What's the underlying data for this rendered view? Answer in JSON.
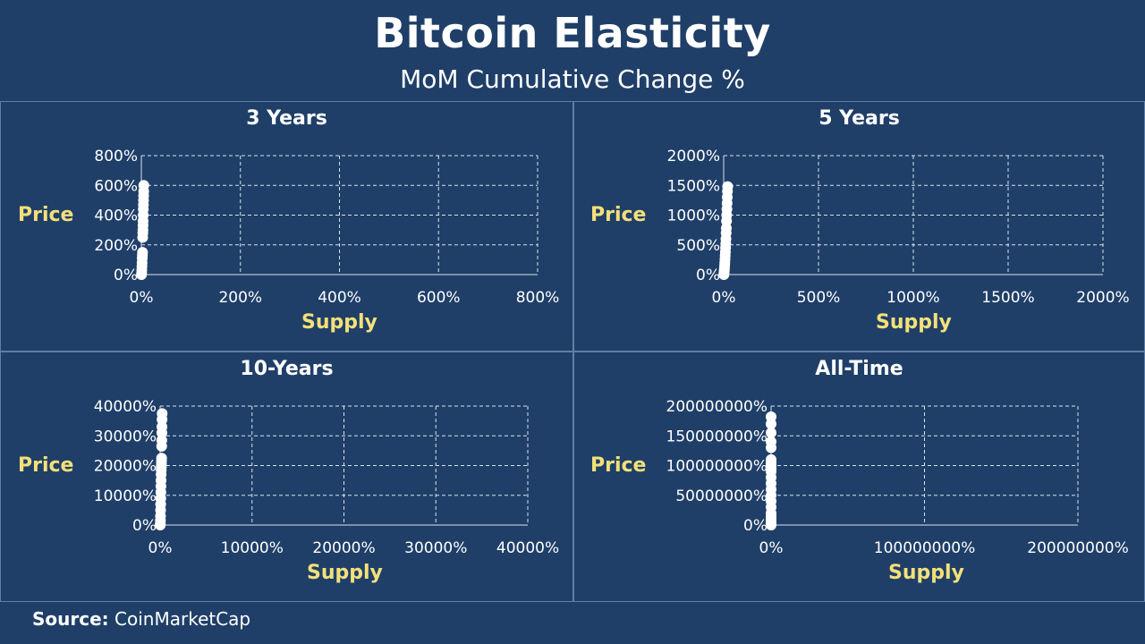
{
  "title": "Bitcoin Elasticity",
  "subtitle": "MoM Cumulative Change %",
  "source": {
    "label": "Source:",
    "value": "CoinMarketCap"
  },
  "chart_data": [
    {
      "type": "scatter",
      "title": "3 Years",
      "xlabel": "Supply",
      "ylabel": "Price",
      "xlim": [
        0,
        800
      ],
      "ylim": [
        0,
        800
      ],
      "xticks": [
        "0%",
        "200%",
        "400%",
        "600%",
        "800%"
      ],
      "yticks": [
        "0%",
        "200%",
        "400%",
        "600%",
        "800%"
      ],
      "grid": true,
      "points": [
        [
          0.3,
          0
        ],
        [
          0.6,
          10
        ],
        [
          0.9,
          30
        ],
        [
          1.2,
          55
        ],
        [
          1.5,
          80
        ],
        [
          1.8,
          110
        ],
        [
          2.1,
          130
        ],
        [
          2.4,
          150
        ],
        [
          2.7,
          250
        ],
        [
          3,
          280
        ],
        [
          3.2,
          300
        ],
        [
          3.4,
          330
        ],
        [
          3.6,
          360
        ],
        [
          3.8,
          400
        ],
        [
          4,
          440
        ],
        [
          4.2,
          470
        ],
        [
          4.4,
          500
        ],
        [
          4.6,
          530
        ],
        [
          4.8,
          560
        ],
        [
          5,
          600
        ]
      ]
    },
    {
      "type": "scatter",
      "title": "5 Years",
      "xlabel": "Supply",
      "ylabel": "Price",
      "xlim": [
        0,
        2000
      ],
      "ylim": [
        0,
        2000
      ],
      "xticks": [
        "0%",
        "500%",
        "1000%",
        "1500%",
        "2000%"
      ],
      "yticks": [
        "0%",
        "500%",
        "1000%",
        "1500%",
        "2000%"
      ],
      "grid": true,
      "points": [
        [
          1,
          0
        ],
        [
          2,
          30
        ],
        [
          3,
          60
        ],
        [
          4,
          100
        ],
        [
          5,
          150
        ],
        [
          6,
          200
        ],
        [
          7,
          260
        ],
        [
          8,
          320
        ],
        [
          9,
          380
        ],
        [
          10,
          450
        ],
        [
          11,
          520
        ],
        [
          12,
          600
        ],
        [
          13,
          700
        ],
        [
          14,
          780
        ],
        [
          15,
          900
        ],
        [
          16,
          1000
        ],
        [
          17,
          1100
        ],
        [
          18,
          1200
        ],
        [
          19,
          1300
        ],
        [
          20,
          1400
        ],
        [
          21,
          1480
        ]
      ]
    },
    {
      "type": "scatter",
      "title": "10-Years",
      "xlabel": "Supply",
      "ylabel": "Price",
      "xlim": [
        0,
        40000
      ],
      "ylim": [
        0,
        40000
      ],
      "xticks": [
        "0%",
        "10000%",
        "20000%",
        "30000%",
        "40000%"
      ],
      "yticks": [
        "0%",
        "10000%",
        "20000%",
        "30000%",
        "40000%"
      ],
      "grid": true,
      "points": [
        [
          10,
          0
        ],
        [
          20,
          500
        ],
        [
          30,
          1500
        ],
        [
          40,
          3000
        ],
        [
          50,
          5000
        ],
        [
          60,
          7000
        ],
        [
          70,
          9000
        ],
        [
          80,
          11000
        ],
        [
          90,
          13000
        ],
        [
          100,
          15000
        ],
        [
          110,
          17000
        ],
        [
          120,
          18500
        ],
        [
          130,
          19500
        ],
        [
          140,
          20500
        ],
        [
          150,
          21500
        ],
        [
          160,
          22500
        ],
        [
          170,
          26500
        ],
        [
          180,
          28500
        ],
        [
          190,
          31000
        ],
        [
          200,
          33000
        ],
        [
          210,
          35500
        ],
        [
          220,
          37500
        ]
      ]
    },
    {
      "type": "scatter",
      "title": "All-Time",
      "xlabel": "Supply",
      "ylabel": "Price",
      "xlim": [
        0,
        200000000
      ],
      "ylim": [
        0,
        200000000
      ],
      "xticks": [
        "0%",
        "100000000%",
        "200000000%"
      ],
      "yticks": [
        "0%",
        "50000000%",
        "100000000%",
        "150000000%",
        "200000000%"
      ],
      "grid": true,
      "points": [
        [
          100,
          0
        ],
        [
          200,
          2000000
        ],
        [
          300,
          5000000
        ],
        [
          400,
          10000000
        ],
        [
          500,
          15000000
        ],
        [
          600,
          20000000
        ],
        [
          700,
          30000000
        ],
        [
          800,
          40000000
        ],
        [
          900,
          50000000
        ],
        [
          1000,
          60000000
        ],
        [
          1100,
          70000000
        ],
        [
          1200,
          80000000
        ],
        [
          1300,
          90000000
        ],
        [
          1400,
          95000000
        ],
        [
          1500,
          100000000
        ],
        [
          1600,
          105000000
        ],
        [
          1700,
          110000000
        ],
        [
          1800,
          130000000
        ],
        [
          1900,
          140000000
        ],
        [
          2000,
          155000000
        ],
        [
          2100,
          170000000
        ],
        [
          2200,
          182000000
        ]
      ]
    }
  ]
}
